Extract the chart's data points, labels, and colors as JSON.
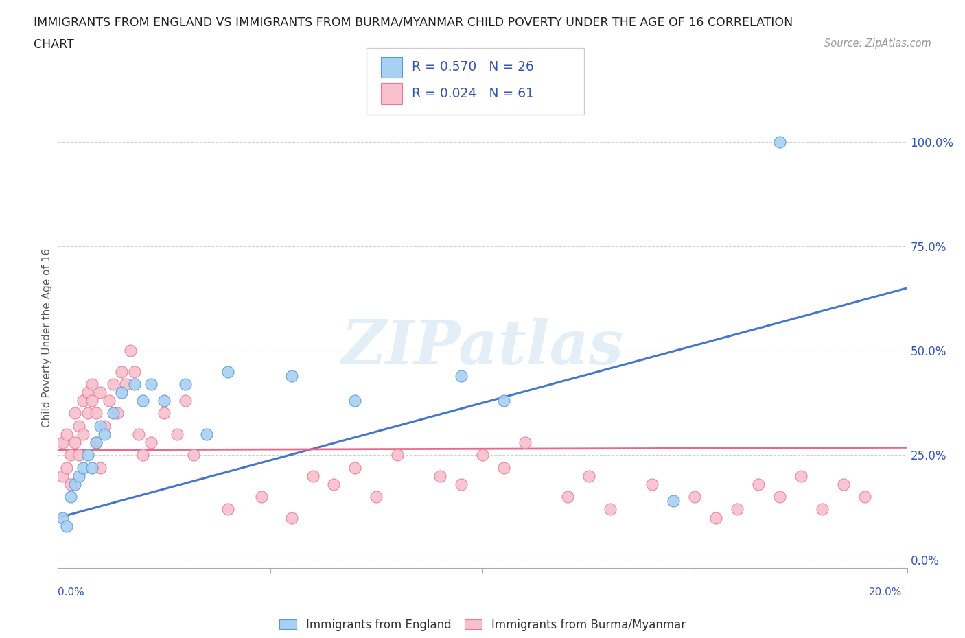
{
  "title_line1": "IMMIGRANTS FROM ENGLAND VS IMMIGRANTS FROM BURMA/MYANMAR CHILD POVERTY UNDER THE AGE OF 16 CORRELATION",
  "title_line2": "CHART",
  "source_text": "Source: ZipAtlas.com",
  "ylabel": "Child Poverty Under the Age of 16",
  "ytick_labels": [
    "0.0%",
    "25.0%",
    "50.0%",
    "75.0%",
    "100.0%"
  ],
  "ytick_values": [
    0.0,
    0.25,
    0.5,
    0.75,
    1.0
  ],
  "xlim": [
    0.0,
    0.2
  ],
  "ylim": [
    -0.02,
    1.08
  ],
  "watermark_text": "ZIPatlas",
  "legend_r1": "R = 0.570",
  "legend_n1": "N = 26",
  "legend_r2": "R = 0.024",
  "legend_n2": "N = 61",
  "england_fill_color": "#a8d0f0",
  "england_edge_color": "#5599dd",
  "burma_fill_color": "#f8c0cc",
  "burma_edge_color": "#ee7799",
  "england_line_color": "#4477cc",
  "burma_line_color": "#ee6688",
  "legend_color": "#3355bb",
  "background_color": "#ffffff",
  "grid_color": "#cccccc",
  "england_line_y0": 0.1,
  "england_line_y1": 0.65,
  "burma_line_y0": 0.262,
  "burma_line_y1": 0.268,
  "england_scatter_x": [
    0.001,
    0.002,
    0.003,
    0.004,
    0.005,
    0.006,
    0.007,
    0.008,
    0.009,
    0.01,
    0.011,
    0.013,
    0.015,
    0.018,
    0.02,
    0.022,
    0.025,
    0.03,
    0.035,
    0.04,
    0.055,
    0.07,
    0.095,
    0.105,
    0.145,
    0.17
  ],
  "england_scatter_y": [
    0.1,
    0.08,
    0.15,
    0.18,
    0.2,
    0.22,
    0.25,
    0.22,
    0.28,
    0.32,
    0.3,
    0.35,
    0.4,
    0.42,
    0.38,
    0.42,
    0.38,
    0.42,
    0.3,
    0.45,
    0.44,
    0.38,
    0.44,
    0.38,
    0.14,
    1.0
  ],
  "burma_scatter_x": [
    0.001,
    0.001,
    0.002,
    0.002,
    0.003,
    0.003,
    0.004,
    0.004,
    0.005,
    0.005,
    0.006,
    0.006,
    0.007,
    0.007,
    0.008,
    0.008,
    0.009,
    0.009,
    0.01,
    0.01,
    0.011,
    0.012,
    0.013,
    0.014,
    0.015,
    0.016,
    0.017,
    0.018,
    0.019,
    0.02,
    0.022,
    0.025,
    0.028,
    0.03,
    0.032,
    0.04,
    0.048,
    0.055,
    0.06,
    0.065,
    0.07,
    0.075,
    0.08,
    0.09,
    0.095,
    0.1,
    0.105,
    0.11,
    0.12,
    0.125,
    0.13,
    0.14,
    0.15,
    0.155,
    0.16,
    0.165,
    0.17,
    0.175,
    0.18,
    0.185,
    0.19
  ],
  "burma_scatter_y": [
    0.2,
    0.28,
    0.22,
    0.3,
    0.18,
    0.25,
    0.28,
    0.35,
    0.32,
    0.25,
    0.38,
    0.3,
    0.35,
    0.4,
    0.38,
    0.42,
    0.35,
    0.28,
    0.4,
    0.22,
    0.32,
    0.38,
    0.42,
    0.35,
    0.45,
    0.42,
    0.5,
    0.45,
    0.3,
    0.25,
    0.28,
    0.35,
    0.3,
    0.38,
    0.25,
    0.12,
    0.15,
    0.1,
    0.2,
    0.18,
    0.22,
    0.15,
    0.25,
    0.2,
    0.18,
    0.25,
    0.22,
    0.28,
    0.15,
    0.2,
    0.12,
    0.18,
    0.15,
    0.1,
    0.12,
    0.18,
    0.15,
    0.2,
    0.12,
    0.18,
    0.15
  ],
  "xtick_positions": [
    0.0,
    0.05,
    0.1,
    0.15,
    0.2
  ],
  "bottom_legend_england": "Immigrants from England",
  "bottom_legend_burma": "Immigrants from Burma/Myanmar"
}
